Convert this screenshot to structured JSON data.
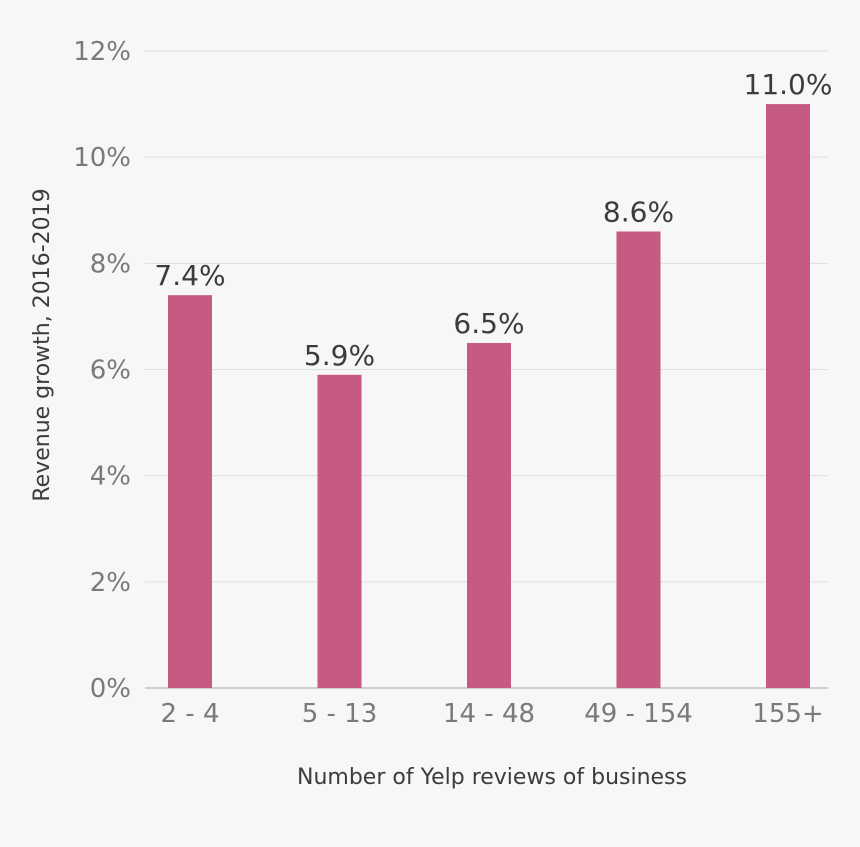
{
  "chart_data": {
    "type": "bar",
    "title": "",
    "xlabel": "Number of Yelp reviews of business",
    "ylabel": "Revenue growth, 2016-2019",
    "categories": [
      "2 - 4",
      "5 - 13",
      "14 - 48",
      "49 - 154",
      "155+"
    ],
    "values": [
      7.4,
      5.9,
      6.5,
      8.6,
      11.0
    ],
    "value_labels": [
      "7.4%",
      "5.9%",
      "6.5%",
      "8.6%",
      "11.0%"
    ],
    "ylim": [
      0,
      12
    ],
    "yticks": [
      0,
      2,
      4,
      6,
      8,
      10,
      12
    ],
    "ytick_labels": [
      "0%",
      "2%",
      "4%",
      "6%",
      "8%",
      "10%",
      "12%"
    ],
    "grid": true,
    "legend": "none"
  },
  "colors": {
    "bar": "#c55a82",
    "grid": "#dedede",
    "baseline": "#cfcfcf",
    "background": "#f7f7f7"
  }
}
